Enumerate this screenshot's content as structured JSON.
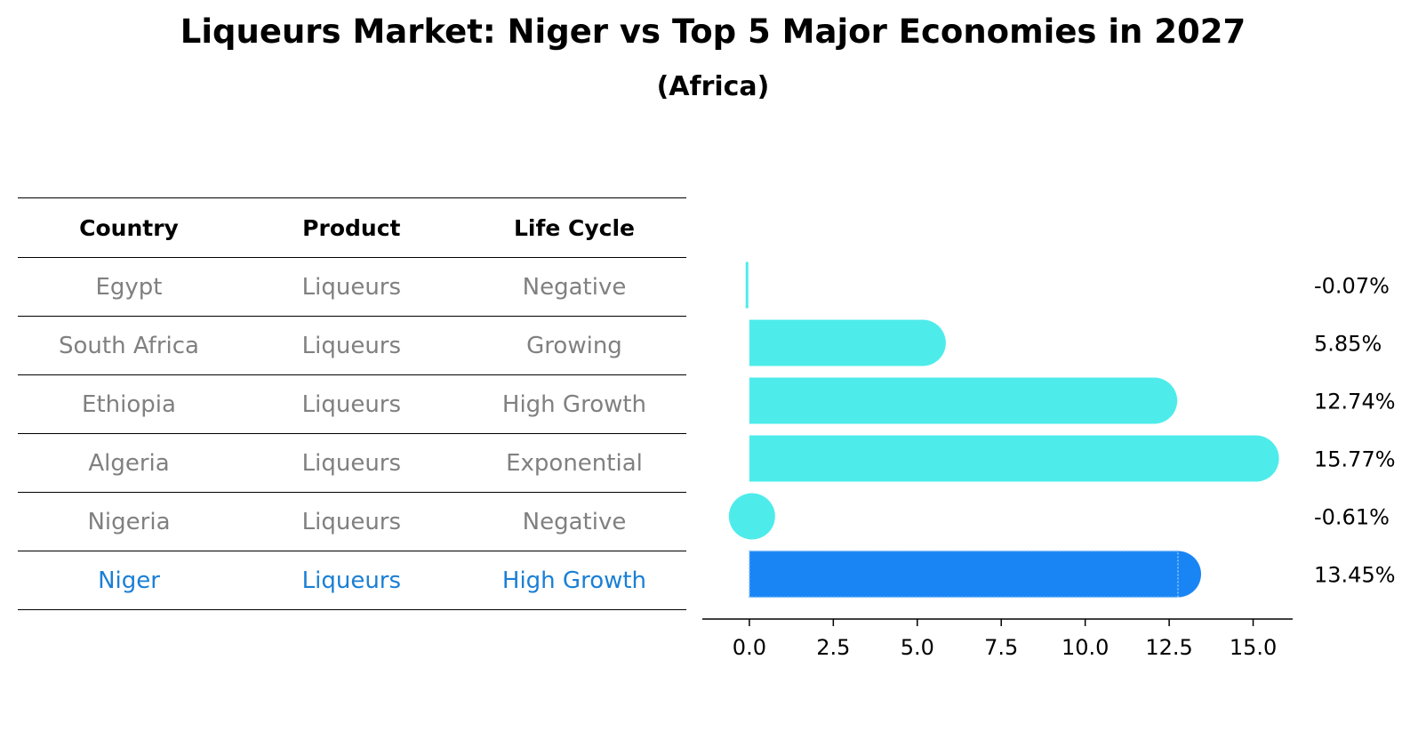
{
  "title": "Liqueurs Market: Niger vs Top 5 Major Economies in 2027",
  "subtitle": "(Africa)",
  "table": {
    "headers": [
      "Country",
      "Product",
      "Life Cycle"
    ],
    "rows": [
      {
        "country": "Egypt",
        "product": "Liqueurs",
        "life_cycle": "Negative"
      },
      {
        "country": "South Africa",
        "product": "Liqueurs",
        "life_cycle": "Growing"
      },
      {
        "country": "Ethiopia",
        "product": "Liqueurs",
        "life_cycle": "High Growth"
      },
      {
        "country": "Algeria",
        "product": "Liqueurs",
        "life_cycle": "Exponential"
      },
      {
        "country": "Nigeria",
        "product": "Liqueurs",
        "life_cycle": "Negative"
      },
      {
        "country": "Niger",
        "product": "Liqueurs",
        "life_cycle": "High Growth"
      }
    ],
    "highlight_row": "Niger"
  },
  "chart_data": {
    "type": "bar",
    "orientation": "horizontal",
    "categories": [
      "Egypt",
      "South Africa",
      "Ethiopia",
      "Algeria",
      "Nigeria",
      "Niger"
    ],
    "values": [
      -0.07,
      5.85,
      12.74,
      15.77,
      -0.61,
      13.45
    ],
    "value_labels": [
      "-0.07%",
      "5.85%",
      "12.74%",
      "15.77%",
      "-0.61%",
      "13.45%"
    ],
    "highlight": "Niger",
    "xlim": [
      -1.4,
      16.6
    ],
    "xticks": [
      "0.0",
      "2.5",
      "5.0",
      "7.5",
      "10.0",
      "12.5",
      "15.0"
    ],
    "colors": {
      "bar": "#4deceb",
      "highlight": "#1985f5"
    },
    "grid": false
  }
}
